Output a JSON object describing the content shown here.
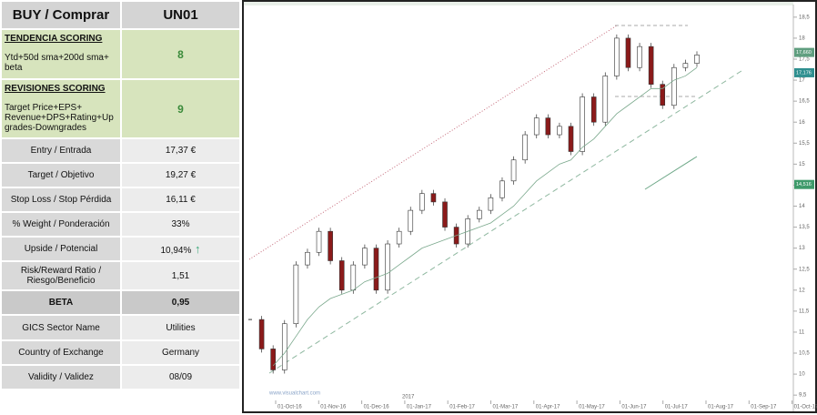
{
  "table": {
    "header": [
      "BUY / Comprar",
      "UN01"
    ],
    "scoring": [
      {
        "title": "TENDENCIA SCORING",
        "desc": [
          "Ytd+50d sma+200d  sma+",
          "beta"
        ],
        "value": "8"
      },
      {
        "title": "REVISIONES SCORING",
        "desc": [
          "Target Price+EPS+",
          "Revenue+DPS+Rating+Up",
          "grades-Downgrades"
        ],
        "value": "9"
      }
    ],
    "rows": [
      [
        "Entry / Entrada",
        "17,37 €"
      ],
      [
        "Target / Objetivo",
        "19,27 €"
      ],
      [
        "Stop Loss / Stop Pérdida",
        "16,11 €"
      ],
      [
        "% Weight / Ponderación",
        "33%"
      ],
      [
        "Upside / Potencial",
        "10,94%"
      ],
      [
        "Risk/Reward  Ratio / Riesgo/Beneficio",
        "1,51"
      ],
      [
        "BETA",
        "0,95"
      ],
      [
        "GICS Sector Name",
        "Utilities"
      ],
      [
        "Country of Exchange",
        "Germany"
      ],
      [
        "Validity / Validez",
        "08/09"
      ]
    ]
  },
  "chart_data": {
    "type": "candlestick",
    "watermark": "www.visualchart.com",
    "year_label": "2017",
    "categories": [
      null,
      null,
      null,
      null,
      null,
      null,
      null,
      null,
      null,
      null,
      null,
      null,
      null,
      null,
      null,
      null,
      null,
      null,
      null,
      null,
      null,
      null,
      null,
      null,
      null,
      null,
      null,
      null,
      null,
      null,
      null,
      null,
      null,
      null,
      null,
      null,
      null,
      null,
      null,
      null
    ],
    "series": [
      {
        "name": "close",
        "up_color": "#ffffff",
        "down_color": "#8b1a1a",
        "values": [
          11.3,
          10.6,
          10.1,
          11.2,
          12.6,
          12.9,
          13.4,
          12.7,
          12.0,
          12.6,
          13.0,
          12.0,
          13.1,
          13.4,
          13.9,
          14.3,
          14.1,
          13.5,
          13.1,
          13.7,
          13.9,
          14.2,
          14.6,
          15.1,
          15.7,
          16.1,
          15.7,
          15.9,
          15.3,
          16.6,
          16.0,
          17.1,
          18.0,
          17.3,
          17.8,
          16.9,
          16.4,
          17.3,
          17.4,
          17.6
        ]
      },
      {
        "name": "sma",
        "color": "#7aa88c",
        "values": [
          null,
          null,
          10.2,
          10.5,
          10.9,
          11.3,
          11.6,
          11.8,
          11.9,
          12.0,
          12.2,
          12.3,
          12.4,
          12.6,
          12.8,
          13.0,
          13.1,
          13.2,
          13.3,
          13.4,
          13.5,
          13.6,
          13.8,
          14.0,
          14.3,
          14.6,
          14.8,
          15.0,
          15.1,
          15.4,
          15.6,
          15.9,
          16.2,
          16.4,
          16.6,
          16.8,
          16.8,
          17.0,
          17.1,
          17.3
        ]
      }
    ],
    "ylim": [
      9.2,
      18.8
    ],
    "yticks": [
      {
        "value": 9.5,
        "label": "9,5"
      },
      10,
      {
        "value": 10.5,
        "label": "10,5"
      },
      11,
      {
        "value": 11.5,
        "label": "11,5"
      },
      12,
      {
        "value": 12.5,
        "label": "12,5"
      },
      13,
      {
        "value": 13.5,
        "label": "13,5"
      },
      14,
      {
        "value": 14.5,
        "label": "14,5"
      },
      15,
      {
        "value": 15.5,
        "label": "15,5"
      },
      16,
      {
        "value": 16.5,
        "label": "16,5"
      },
      17,
      {
        "value": 17.5,
        "label": "17,5"
      },
      18,
      {
        "value": 18.5,
        "label": "18,5"
      }
    ],
    "xticks": [
      "01-Oct-16",
      "01-Nov-16",
      "01-Dec-16",
      "01-Jan-17",
      "01-Feb-17",
      "01-Mar-17",
      "01-Apr-17",
      "01-May-17",
      "01-Jun-17",
      "01-Jul-17",
      "01-Aug-17",
      "01-Sep-17",
      "01-Oct-17"
    ],
    "price_labels": [
      {
        "value": 17.66,
        "label": "17,660",
        "color": "#5f9e7f"
      },
      {
        "value": 17.176,
        "label": "17,176",
        "color": "#2f8f8f"
      },
      {
        "value": 14.516,
        "label": "14,516",
        "color": "#3e9a6a"
      }
    ]
  }
}
